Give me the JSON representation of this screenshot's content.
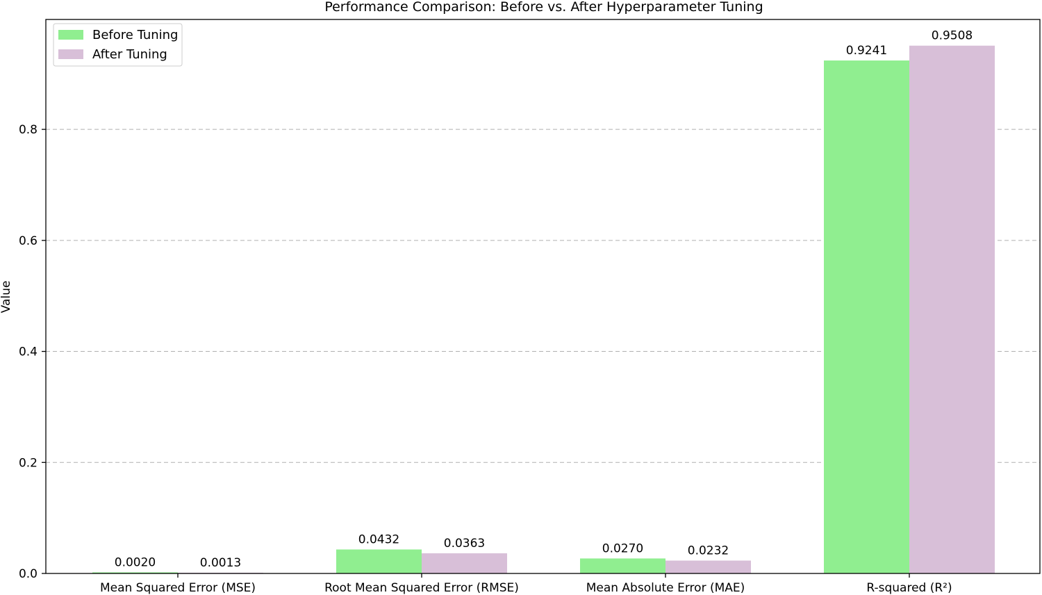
{
  "chart_data": {
    "type": "bar",
    "title": "Performance Comparison: Before vs. After Hyperparameter Tuning",
    "xlabel": "",
    "ylabel": "Value",
    "categories": [
      "Mean Squared Error (MSE)",
      "Root Mean Squared Error (RMSE)",
      "Mean Absolute Error (MAE)",
      "R-squared (R²)"
    ],
    "series": [
      {
        "name": "Before Tuning",
        "color": "#90ee90",
        "values": [
          0.002,
          0.0432,
          0.027,
          0.9241
        ],
        "labels": [
          "0.0020",
          "0.0432",
          "0.0270",
          "0.9241"
        ]
      },
      {
        "name": "After Tuning",
        "color": "#d8bfd8",
        "values": [
          0.0013,
          0.0363,
          0.0232,
          0.9508
        ],
        "labels": [
          "0.0013",
          "0.0363",
          "0.0232",
          "0.9508"
        ]
      }
    ],
    "ylim": [
      0,
      0.998
    ],
    "yticks": [
      0.0,
      0.2,
      0.4,
      0.6,
      0.8
    ],
    "ytick_labels": [
      "0.0",
      "0.2",
      "0.4",
      "0.6",
      "0.8"
    ],
    "grid": "y-dashed",
    "legend_position": "top-left"
  }
}
